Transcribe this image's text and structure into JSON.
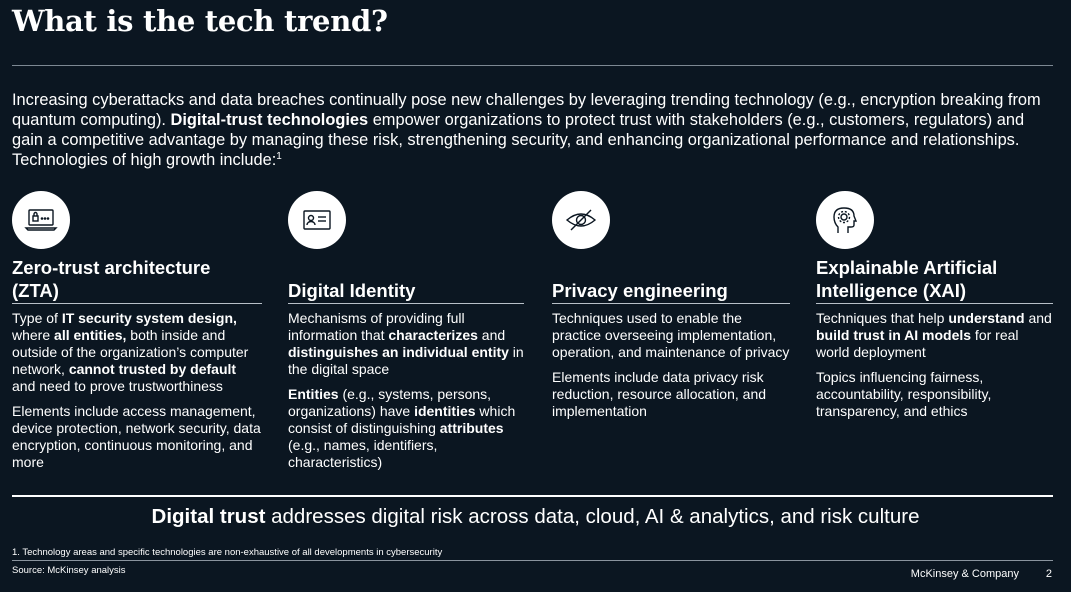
{
  "title": "What is the tech trend?",
  "intro": {
    "p1": "Increasing cyberattacks and data breaches continually pose new challenges by leveraging trending technology (e.g., encryption breaking from quantum computing). ",
    "bold1": "Digital-trust technologies",
    "p2": " empower organizations to protect trust with stakeholders (e.g., customers, regulators) and gain a competitive advantage by managing these risk, strengthening security, and enhancing organizational performance and relationships. Technologies of high growth include:",
    "sup": "1"
  },
  "columns": [
    {
      "icon": "laptop-lock-icon",
      "title": "Zero-trust architecture (ZTA)",
      "para1": [
        {
          "t": "Type of ",
          "b": false
        },
        {
          "t": "IT security system design,",
          "b": true
        },
        {
          "t": " where ",
          "b": false
        },
        {
          "t": "all entities,",
          "b": true
        },
        {
          "t": " both inside and outside of the organization’s computer network, ",
          "b": false
        },
        {
          "t": "cannot trusted by default",
          "b": true
        },
        {
          "t": " and need to prove trustworthiness",
          "b": false
        }
      ],
      "para2": [
        {
          "t": "Elements include access management, device protection, network security, data encryption, continuous monitoring, and more",
          "b": false
        }
      ]
    },
    {
      "icon": "id-card-icon",
      "title": "Digital Identity",
      "para1": [
        {
          "t": "Mechanisms of providing full information that ",
          "b": false
        },
        {
          "t": "characterizes",
          "b": true
        },
        {
          "t": " and ",
          "b": false
        },
        {
          "t": "distinguishes an individual entity",
          "b": true
        },
        {
          "t": " in the digital space",
          "b": false
        }
      ],
      "para2": [
        {
          "t": "Entities",
          "b": true
        },
        {
          "t": " (e.g., systems, persons, organizations) have ",
          "b": false
        },
        {
          "t": "identities",
          "b": true
        },
        {
          "t": " which consist of distinguishing ",
          "b": false
        },
        {
          "t": "attributes",
          "b": true
        },
        {
          "t": " (e.g., names, identifiers, characteristics)",
          "b": false
        }
      ]
    },
    {
      "icon": "eye-slash-icon",
      "title": "Privacy engineering",
      "para1": [
        {
          "t": "Techniques used to enable the practice overseeing implementation, operation, and maintenance of privacy",
          "b": false
        }
      ],
      "para2": [
        {
          "t": "Elements include data privacy risk reduction, resource allocation, and implementation",
          "b": false
        }
      ]
    },
    {
      "icon": "head-gear-icon",
      "title": "Explainable Artificial Intelligence (XAI)",
      "para1": [
        {
          "t": "Techniques that help ",
          "b": false
        },
        {
          "t": "understand",
          "b": true
        },
        {
          "t": " and ",
          "b": false
        },
        {
          "t": "build trust in AI models",
          "b": true
        },
        {
          "t": " for real world deployment",
          "b": false
        }
      ],
      "para2": [
        {
          "t": "Topics influencing fairness, accountability, responsibility, transparency, and ethics",
          "b": false
        }
      ]
    }
  ],
  "tagline": {
    "bold": "Digital trust",
    "rest": " addresses digital risk across data, cloud, AI & analytics, and risk culture"
  },
  "footnote": "1. Technology areas and specific technologies are non-exhaustive of all developments in cybersecurity",
  "source": "Source: McKinsey analysis",
  "brand": "McKinsey & Company",
  "page_number": "2"
}
